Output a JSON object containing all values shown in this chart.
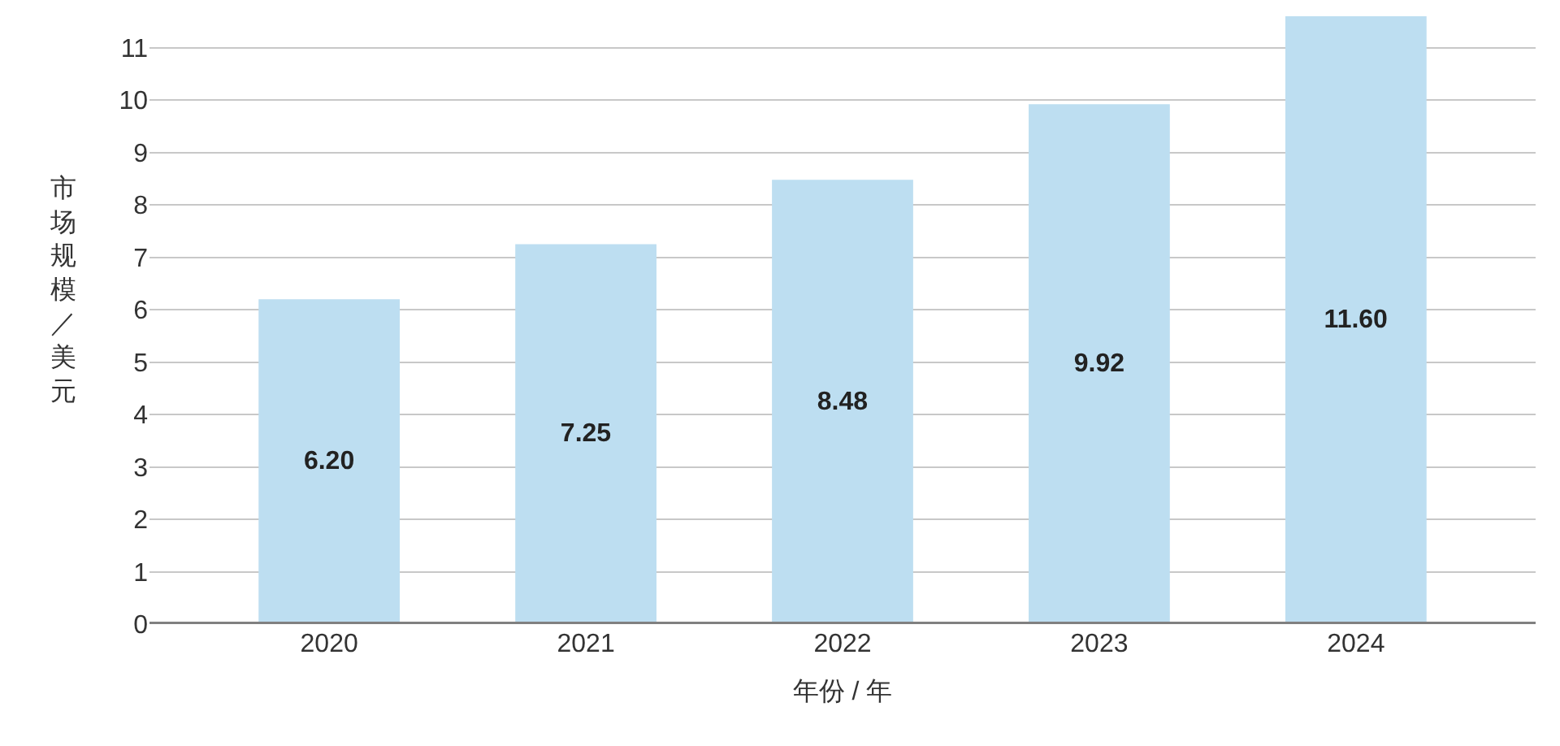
{
  "chart_data": {
    "type": "bar",
    "xlabel": "年份 / 年",
    "ylabel": "市场规模／美元",
    "categories": [
      "2020",
      "2021",
      "2022",
      "2023",
      "2024"
    ],
    "values": [
      6.2,
      7.25,
      8.48,
      9.92,
      11.6
    ],
    "value_labels": [
      "6.20",
      "7.25",
      "8.48",
      "9.92",
      "11.60"
    ],
    "color": "#bddef1",
    "ylim": [
      0,
      11.6
    ],
    "yticks": [
      0,
      1,
      2,
      3,
      4,
      5,
      6,
      7,
      8,
      9,
      10,
      11
    ],
    "grid": "y"
  }
}
